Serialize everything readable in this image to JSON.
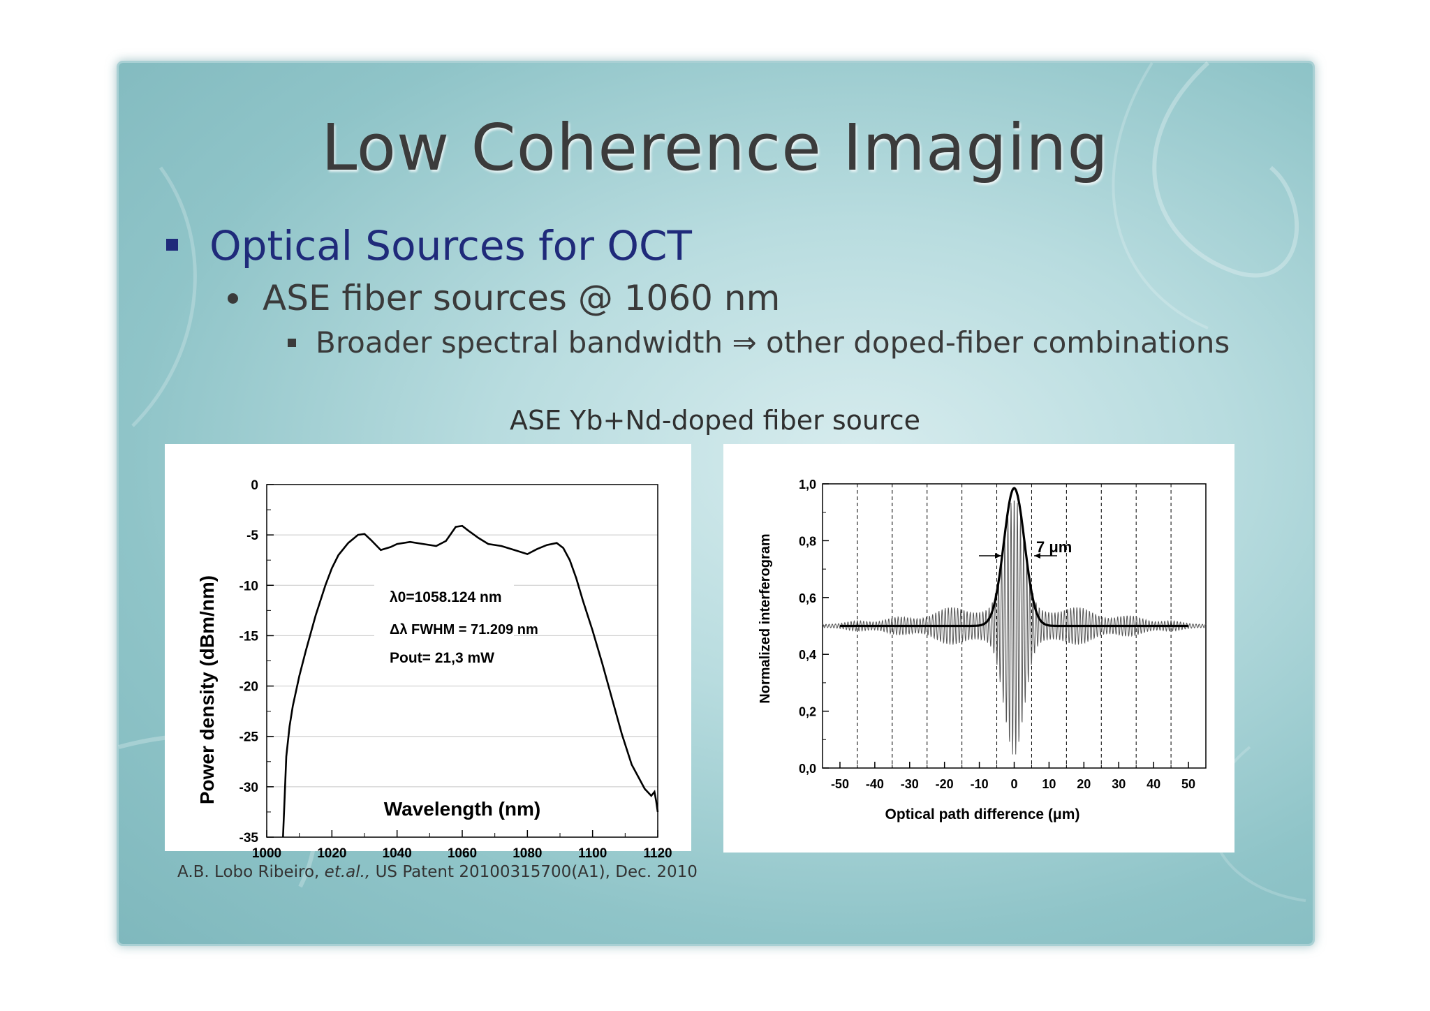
{
  "slide": {
    "title": "Low Coherence Imaging",
    "bullet1": "Optical Sources for OCT",
    "bullet2": "ASE fiber sources @ 1060 nm",
    "bullet3": "Broader spectral bandwidth ⇒ other doped-fiber combinations",
    "figure_caption": "ASE Yb+Nd-doped fiber source",
    "reference": {
      "authors": "A.B. Lobo Ribeiro, ",
      "etal": "et.al.,",
      "rest": " US Patent 20100315700(A1), Dec. 2010"
    },
    "colors": {
      "title": "#3b3b3b",
      "level1": "#1f2a7a",
      "background": "#9fcfd3"
    }
  },
  "chart_data": [
    {
      "type": "line",
      "xlabel": "Wavelength (nm)",
      "ylabel": "Power density (dBm/nm)",
      "xlim": [
        1000,
        1120
      ],
      "ylim": [
        -35,
        0
      ],
      "xticks": [
        "1000",
        "1020",
        "1040",
        "1060",
        "1080",
        "1100",
        "1120"
      ],
      "yticks": [
        "0",
        "-5",
        "-10",
        "-15",
        "-20",
        "-25",
        "-30",
        "-35"
      ],
      "grid": "horizontal",
      "annotations": {
        "lambda0": "λ0=1058.124 nm",
        "fwhm": "Δλ FWHM = 71.209 nm",
        "pout": "Pout=  21,3 mW"
      },
      "x": [
        1005,
        1005.5,
        1006,
        1007,
        1008,
        1010,
        1012,
        1015,
        1018,
        1020,
        1022,
        1025,
        1028,
        1030,
        1032,
        1035,
        1038,
        1040,
        1044,
        1048,
        1052,
        1055,
        1058,
        1060,
        1062,
        1065,
        1068,
        1072,
        1076,
        1080,
        1083,
        1086,
        1089,
        1091,
        1093,
        1095,
        1097,
        1100,
        1103,
        1106,
        1109,
        1112,
        1114,
        1116,
        1118,
        1119,
        1119.5,
        1120
      ],
      "y": [
        -35,
        -31,
        -27,
        -24,
        -22,
        -19,
        -16.5,
        -13,
        -10,
        -8.3,
        -7,
        -5.8,
        -5,
        -4.9,
        -5.5,
        -6.5,
        -6.2,
        -5.9,
        -5.7,
        -5.9,
        -6.1,
        -5.6,
        -4.2,
        -4.1,
        -4.6,
        -5.3,
        -5.9,
        -6.1,
        -6.5,
        -6.9,
        -6.4,
        -6.0,
        -5.8,
        -6.3,
        -7.5,
        -9.3,
        -11.5,
        -14.5,
        -17.8,
        -21.3,
        -24.8,
        -27.8,
        -29.0,
        -30.2,
        -30.9,
        -30.5,
        -31.4,
        -32.5
      ]
    },
    {
      "type": "line",
      "xlabel": "Optical path difference (μm)",
      "ylabel": "Normalized interferogram",
      "xlim": [
        -55,
        55
      ],
      "ylim": [
        0,
        1
      ],
      "xticks": [
        "-50",
        "-40",
        "-30",
        "-20",
        "-10",
        "0",
        "10",
        "20",
        "30",
        "40",
        "50"
      ],
      "yticks": [
        "0,0",
        "0,2",
        "0,4",
        "0,6",
        "0,8",
        "1,0"
      ],
      "grid": "vertical dashed",
      "annotation": "7 μm",
      "series": [
        {
          "kind": "fringes",
          "baseline": 0.5,
          "peak": 0.98,
          "min": 0.05,
          "center": 0,
          "fwhm": 7
        },
        {
          "kind": "envelope",
          "baseline": 0.5,
          "peak": 0.985,
          "center": 0,
          "fwhm": 7
        }
      ]
    }
  ]
}
